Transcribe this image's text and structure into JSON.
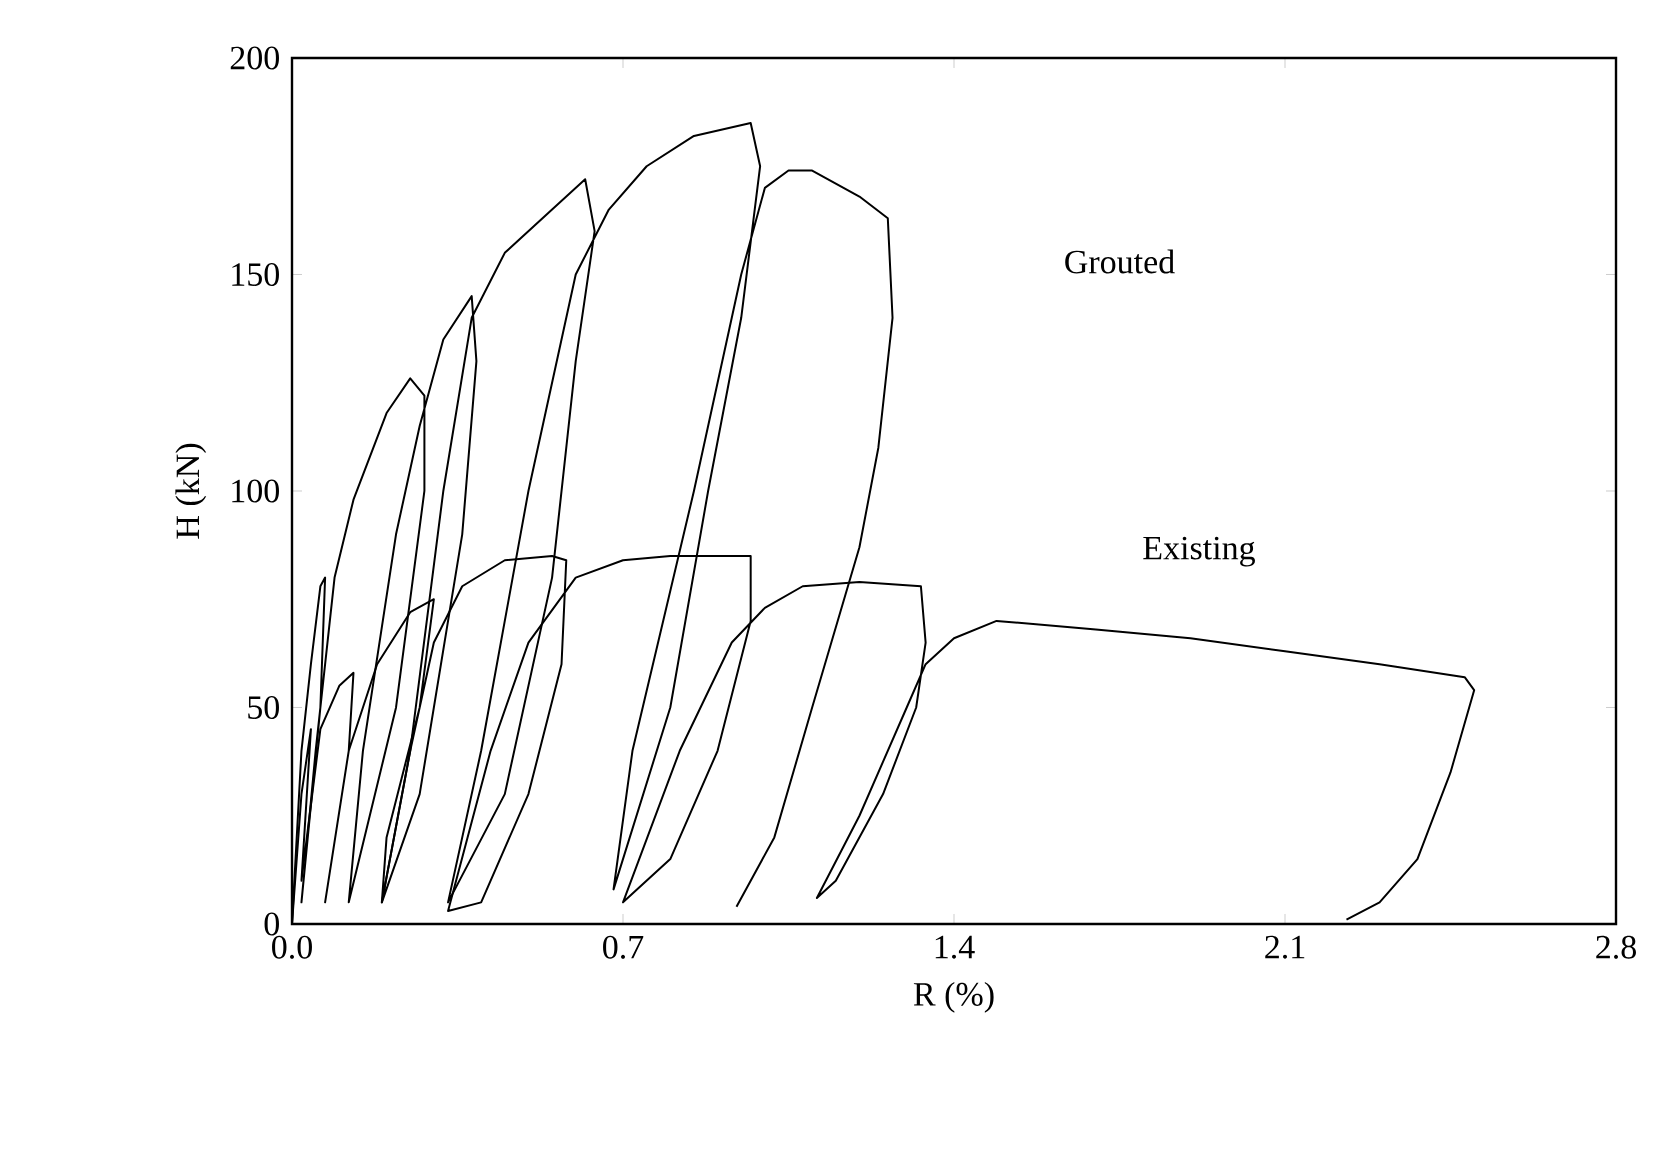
{
  "chart_data": {
    "type": "line",
    "xlabel": "R (%)",
    "ylabel": "H (kN)",
    "xlim": [
      0,
      2.8
    ],
    "ylim": [
      0,
      200
    ],
    "xticks": [
      {
        "value": 0,
        "label": "0.0"
      },
      {
        "value": 0.7,
        "label": "0.7"
      },
      {
        "value": 1.4,
        "label": "1.4"
      },
      {
        "value": 2.1,
        "label": "2.1"
      },
      {
        "value": 2.8,
        "label": "2.8"
      }
    ],
    "yticks": [
      0,
      50,
      100,
      150,
      200
    ],
    "grid": false,
    "marker": "none",
    "line_style": "solid",
    "annotations": [
      "Grouted",
      "Existing"
    ],
    "series": [
      {
        "color": "#000000",
        "x": [
          0,
          0.02,
          0.04,
          0.06,
          0.07,
          0.06,
          0.02,
          0.05,
          0.09,
          0.13,
          0.2,
          0.25,
          0.28,
          0.28,
          0.22,
          0.12,
          0.15,
          0.22,
          0.27,
          0.32,
          0.38,
          0.39,
          0.36,
          0.27,
          0.19,
          0.25,
          0.32,
          0.38,
          0.45,
          0.55,
          0.62,
          0.64,
          0.6,
          0.55,
          0.45,
          0.33,
          0.4,
          0.5,
          0.6,
          0.67,
          0.75,
          0.85,
          0.97,
          0.99,
          0.95,
          0.88,
          0.8,
          0.68,
          0.72,
          0.85,
          0.95,
          1.0,
          1.05,
          1.1,
          1.2,
          1.26,
          1.27,
          1.24,
          1.2,
          1.1,
          1.02,
          0.94
        ],
        "values": [
          0,
          40,
          60,
          78,
          80,
          50,
          5,
          40,
          80,
          98,
          118,
          126,
          122,
          100,
          50,
          5,
          40,
          90,
          115,
          135,
          145,
          130,
          90,
          30,
          5,
          40,
          100,
          140,
          155,
          165,
          172,
          160,
          130,
          80,
          30,
          5,
          40,
          100,
          150,
          165,
          175,
          182,
          185,
          175,
          140,
          100,
          50,
          8,
          40,
          100,
          150,
          170,
          174,
          174,
          168,
          163,
          140,
          110,
          87,
          50,
          20,
          4
        ]
      },
      {
        "color": "#000000",
        "x": [
          0,
          0.02,
          0.04,
          0.02,
          0.06,
          0.1,
          0.13,
          0.12,
          0.07,
          0.12,
          0.18,
          0.25,
          0.3,
          0.27,
          0.2,
          0.19,
          0.25,
          0.3,
          0.36,
          0.45,
          0.55,
          0.58,
          0.57,
          0.5,
          0.4,
          0.33,
          0.42,
          0.5,
          0.6,
          0.7,
          0.8,
          0.97,
          0.97,
          0.9,
          0.8,
          0.7,
          0.82,
          0.93,
          1.0,
          1.08,
          1.2,
          1.33,
          1.34,
          1.32,
          1.25,
          1.15,
          1.11,
          1.2,
          1.3,
          1.34,
          1.4,
          1.49,
          1.7,
          1.9,
          2.1,
          2.3,
          2.48,
          2.5,
          2.45,
          2.38,
          2.3,
          2.23
        ],
        "values": [
          0,
          30,
          45,
          10,
          45,
          55,
          58,
          40,
          5,
          40,
          60,
          72,
          75,
          50,
          20,
          5,
          40,
          65,
          78,
          84,
          85,
          84,
          60,
          30,
          5,
          3,
          40,
          65,
          80,
          84,
          85,
          85,
          70,
          40,
          15,
          5,
          40,
          65,
          73,
          78,
          79,
          78,
          65,
          50,
          30,
          10,
          6,
          25,
          50,
          60,
          66,
          70,
          68,
          66,
          63,
          60,
          57,
          54,
          35,
          15,
          5,
          1
        ]
      }
    ]
  }
}
